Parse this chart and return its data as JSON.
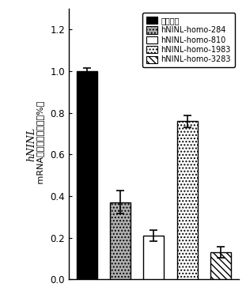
{
  "categories": [
    "",
    "",
    "",
    "",
    ""
  ],
  "values": [
    1.0,
    0.37,
    0.21,
    0.76,
    0.13
  ],
  "errors": [
    0.015,
    0.055,
    0.028,
    0.028,
    0.025
  ],
  "bar_colors": [
    "#000000",
    "#b0b0b0",
    "#ffffff",
    "#ffffff",
    "#ffffff"
  ],
  "bar_hatches": [
    "",
    "....",
    "",
    "....",
    "\\\\\\\\"
  ],
  "bar_edgecolors": [
    "#000000",
    "#000000",
    "#000000",
    "#000000",
    "#000000"
  ],
  "ylabel_italic": "hNINL",
  "ylabel_normal": " mRNA水平（占阴性对照%）",
  "ylim": [
    0,
    1.3
  ],
  "yticks": [
    0,
    0.2,
    0.4,
    0.6,
    0.8,
    1.0,
    1.2
  ],
  "legend_labels": [
    "阴性对照",
    "hNINL-homo-284",
    "hNINL-homo-810",
    "hNINL-homo-1983",
    "hNINL-homo-3283"
  ],
  "legend_colors": [
    "#000000",
    "#b0b0b0",
    "#ffffff",
    "#ffffff",
    "#ffffff"
  ],
  "legend_hatches": [
    "",
    "....",
    "",
    "....",
    "\\\\\\\\"
  ],
  "background_color": "#ffffff",
  "plot_bg_color": "#ffffff",
  "figsize": [
    3.11,
    3.68
  ],
  "dpi": 100
}
